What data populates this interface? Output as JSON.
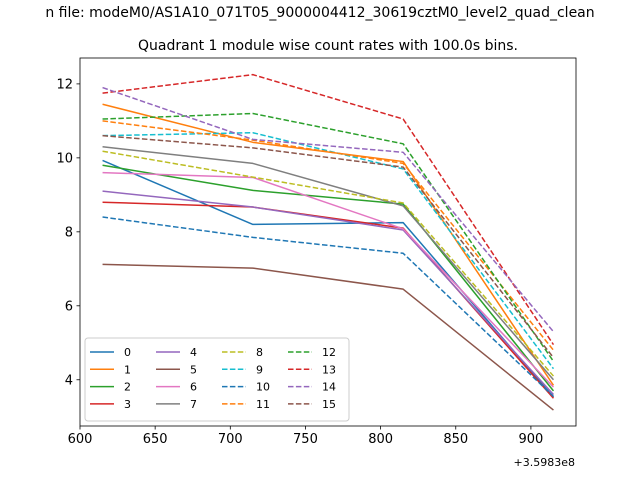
{
  "chart_data": {
    "type": "line",
    "suptitle": "n file: modeM0/AS1A10_071T05_9000004412_30619cztM0_level2_quad_clean",
    "title": "Quadrant 1 module wise count rates with 100.0s bins.",
    "xlabel": "",
    "ylabel": "",
    "x_offset_label": "+3.5983e8",
    "xlim": [
      600,
      930
    ],
    "ylim": [
      2.75,
      12.7
    ],
    "xticks": [
      "600",
      "650",
      "700",
      "750",
      "800",
      "850",
      "900"
    ],
    "yticks": [
      "4",
      "6",
      "8",
      "10",
      "12"
    ],
    "x": [
      615,
      715,
      815,
      915
    ],
    "legend_position": "lower-left",
    "series": [
      {
        "name": "0",
        "color": "#1f77b4",
        "dash": "solid",
        "values": [
          9.93,
          8.2,
          8.25,
          3.53
        ]
      },
      {
        "name": "1",
        "color": "#ff7f0e",
        "dash": "solid",
        "values": [
          11.45,
          10.42,
          9.9,
          3.85
        ]
      },
      {
        "name": "2",
        "color": "#2ca02c",
        "dash": "solid",
        "values": [
          9.8,
          9.12,
          8.75,
          3.7
        ]
      },
      {
        "name": "3",
        "color": "#d62728",
        "dash": "solid",
        "values": [
          8.8,
          8.67,
          8.1,
          3.5
        ]
      },
      {
        "name": "4",
        "color": "#9467bd",
        "dash": "solid",
        "values": [
          9.1,
          8.67,
          8.05,
          3.6
        ]
      },
      {
        "name": "5",
        "color": "#8c564b",
        "dash": "solid",
        "values": [
          7.12,
          7.02,
          6.45,
          3.18
        ]
      },
      {
        "name": "6",
        "color": "#e377c2",
        "dash": "solid",
        "values": [
          9.6,
          9.47,
          8.08,
          3.8
        ]
      },
      {
        "name": "7",
        "color": "#7f7f7f",
        "dash": "solid",
        "values": [
          10.3,
          9.85,
          8.7,
          4.0
        ]
      },
      {
        "name": "8",
        "color": "#bcbd22",
        "dash": "dashed",
        "values": [
          10.18,
          9.48,
          8.78,
          4.1
        ]
      },
      {
        "name": "9",
        "color": "#17becf",
        "dash": "dashed",
        "values": [
          10.6,
          10.68,
          9.7,
          4.3
        ]
      },
      {
        "name": "10",
        "color": "#1f77b4",
        "dash": "dashed",
        "values": [
          8.4,
          7.85,
          7.42,
          3.55
        ]
      },
      {
        "name": "11",
        "color": "#ff7f0e",
        "dash": "dashed",
        "values": [
          11.0,
          10.48,
          9.85,
          4.8
        ]
      },
      {
        "name": "12",
        "color": "#2ca02c",
        "dash": "dashed",
        "values": [
          11.05,
          11.2,
          10.38,
          4.5
        ]
      },
      {
        "name": "13",
        "color": "#d62728",
        "dash": "dashed",
        "values": [
          11.75,
          12.25,
          11.05,
          4.95
        ]
      },
      {
        "name": "14",
        "color": "#9467bd",
        "dash": "dashed",
        "values": [
          11.9,
          10.5,
          10.15,
          5.3
        ]
      },
      {
        "name": "15",
        "color": "#8c564b",
        "dash": "dashed",
        "values": [
          10.6,
          10.27,
          9.75,
          4.6
        ]
      }
    ]
  }
}
